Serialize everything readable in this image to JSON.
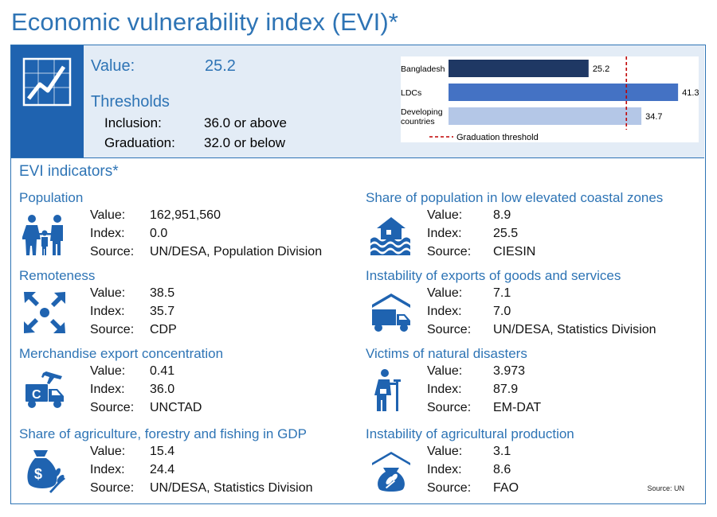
{
  "title": "Economic vulnerability index (EVI)*",
  "summary": {
    "value_label": "Value:",
    "value": "25.2",
    "thresholds_label": "Thresholds",
    "inclusion_label": "Inclusion:",
    "inclusion_value": "36.0 or above",
    "graduation_label": "Graduation:",
    "graduation_value": "32.0 or below"
  },
  "chart_data": {
    "type": "bar",
    "orientation": "horizontal",
    "categories": [
      "Bangladesh",
      "LDCs",
      "Developing countries"
    ],
    "category_lines": [
      [
        "Bangladesh"
      ],
      [
        "LDCs"
      ],
      [
        "Developing",
        "countries"
      ]
    ],
    "values": [
      25.2,
      41.3,
      34.7
    ],
    "value_labels": [
      "25.2",
      "41.3",
      "34.7"
    ],
    "colors": [
      "#1f3864",
      "#4472c4",
      "#b4c7e7"
    ],
    "threshold": 32.0,
    "threshold_color": "#c00000",
    "legend": "Graduation threshold",
    "xlim": [
      0,
      43
    ]
  },
  "indicators_heading": "EVI indicators*",
  "indicators": {
    "left": [
      {
        "title": "Population",
        "value": "162,951,560",
        "index": "0.0",
        "source": "UN/DESA, Population Division"
      },
      {
        "title": "Remoteness",
        "value": "38.5",
        "index": "35.7",
        "source": "CDP"
      },
      {
        "title": "Merchandise export concentration",
        "value": "0.41",
        "index": "36.0",
        "source": "UNCTAD"
      },
      {
        "title": "Share of agriculture, forestry and fishing in GDP",
        "value": "15.4",
        "index": "24.4",
        "source": "UN/DESA, Statistics Division"
      }
    ],
    "right": [
      {
        "title": "Share of population in low elevated coastal zones",
        "value": "8.9",
        "index": "25.5",
        "source": "CIESIN"
      },
      {
        "title": "Instability of exports of goods and services",
        "value": "7.1",
        "index": "7.0",
        "source": "UN/DESA, Statistics Division"
      },
      {
        "title": "Victims of natural disasters",
        "value": "3.973",
        "index": "87.9",
        "source": "EM-DAT"
      },
      {
        "title": "Instability of agricultural production",
        "value": "3.1",
        "index": "8.6",
        "source": "FAO"
      }
    ]
  },
  "row_labels": {
    "value": "Value:",
    "index": "Index:",
    "source": "Source:"
  },
  "source_note": "Source: UN",
  "colors": {
    "accent": "#2e74b5",
    "icon_blue": "#1f63b0",
    "panel_bg": "#e3ecf6"
  }
}
